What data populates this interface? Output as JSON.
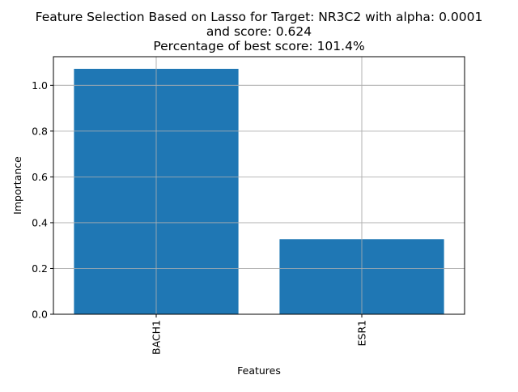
{
  "chart_data": {
    "type": "bar",
    "title_lines": [
      "Feature Selection Based on Lasso for Target: NR3C2 with alpha: 0.0001",
      "and score: 0.624",
      "Percentage of best score: 101.4%"
    ],
    "xlabel": "Features",
    "ylabel": "Importance",
    "categories": [
      "BACH1",
      "ESR1"
    ],
    "values": [
      1.072,
      0.328
    ],
    "ylim": [
      0,
      1.125
    ],
    "yticks": [
      0.0,
      0.2,
      0.4,
      0.6,
      0.8,
      1.0
    ],
    "ytick_labels": [
      "0.0",
      "0.2",
      "0.4",
      "0.6",
      "0.8",
      "1.0"
    ],
    "grid": true,
    "bar_color": "#1f77b4",
    "grid_color": "#b0b0b0"
  }
}
